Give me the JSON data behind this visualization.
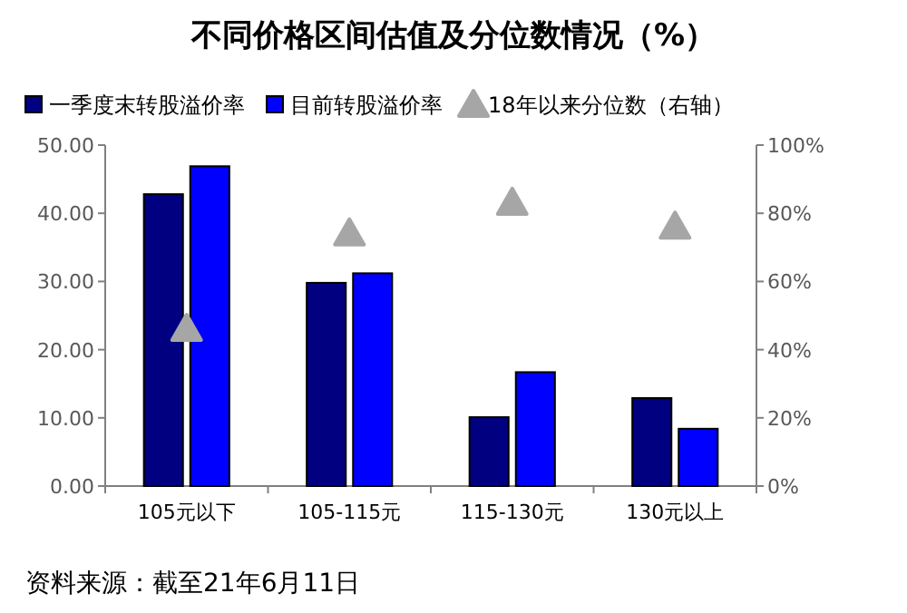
{
  "chart_data": {
    "type": "bar",
    "title": "不同价格区间估值及分位数情况（%）",
    "categories": [
      "105元以下",
      "105-115元",
      "115-130元",
      "130元以上"
    ],
    "series": [
      {
        "name": "一季度末转股溢价率",
        "color": "#000080",
        "values": [
          42.8,
          29.8,
          10.1,
          12.9
        ]
      },
      {
        "name": "目前转股溢价率",
        "color": "#0000ff",
        "values": [
          46.9,
          31.2,
          16.7,
          8.4
        ]
      },
      {
        "name": "18年以来分位数（右轴）",
        "type": "scatter",
        "axis": "y2",
        "marker": "triangle",
        "color": "#a6a6a6",
        "x": [
          "105元以下",
          "105-115元",
          "115-130元",
          "130元以上"
        ],
        "values": [
          46,
          74,
          83,
          76
        ]
      }
    ],
    "ylim": [
      0,
      50
    ],
    "yticks": [
      {
        "value": 0,
        "label": "0.00"
      },
      {
        "value": 10,
        "label": "10.00"
      },
      {
        "value": 20,
        "label": "20.00"
      },
      {
        "value": 30,
        "label": "30.00"
      },
      {
        "value": 40,
        "label": "40.00"
      },
      {
        "value": 50,
        "label": "50.00"
      }
    ],
    "y2lim": [
      0,
      100
    ],
    "y2ticks": [
      {
        "value": 0,
        "label": "0%"
      },
      {
        "value": 20,
        "label": "20%"
      },
      {
        "value": 40,
        "label": "40%"
      },
      {
        "value": 60,
        "label": "60%"
      },
      {
        "value": 80,
        "label": "80%"
      },
      {
        "value": 100,
        "label": "100%"
      }
    ],
    "legend": "top",
    "annotations": [
      "资料来源：截至21年6月11日"
    ]
  }
}
